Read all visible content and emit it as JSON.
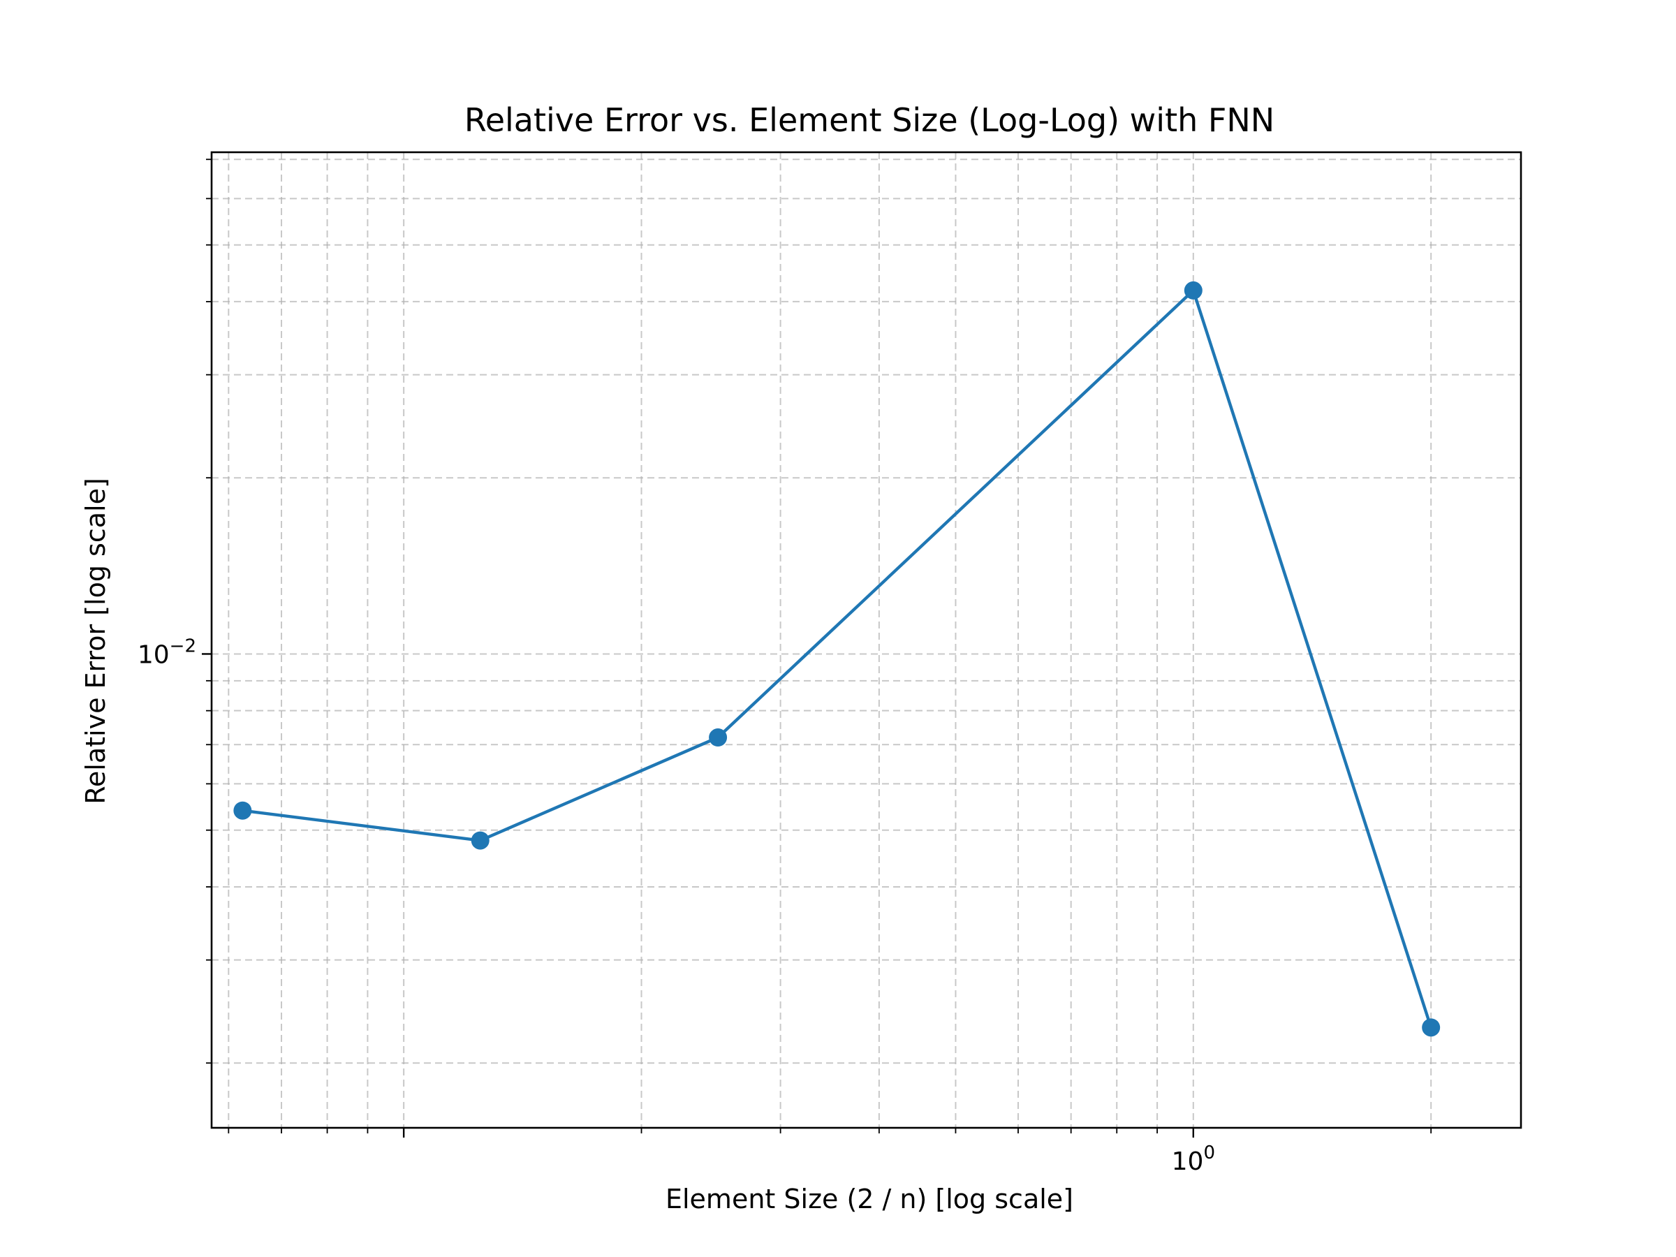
{
  "chart_data": {
    "type": "line",
    "title": "Relative Error vs. Element Size (Log-Log) with FNN",
    "xlabel": "Element Size (2 / n) [log scale]",
    "ylabel": "Relative Error [log scale]",
    "x_scale": "log",
    "y_scale": "log",
    "xlim": [
      0.0571,
      2.6
    ],
    "ylim": [
      0.00155,
      0.072
    ],
    "x_major_ticks": [
      {
        "value": 1,
        "base": "10",
        "exp": "0"
      }
    ],
    "y_major_ticks": [
      {
        "value": 0.01,
        "base": "10",
        "exp": "−2"
      }
    ],
    "grid": true,
    "grid_style": "dashed",
    "legend": "none",
    "series": [
      {
        "x": [
          0.0625,
          0.125,
          0.25,
          1.0,
          2.0
        ],
        "y": [
          0.0054,
          0.0048,
          0.0072,
          0.0418,
          0.0023
        ],
        "color": "#1f77b4",
        "marker": "circle"
      }
    ]
  }
}
